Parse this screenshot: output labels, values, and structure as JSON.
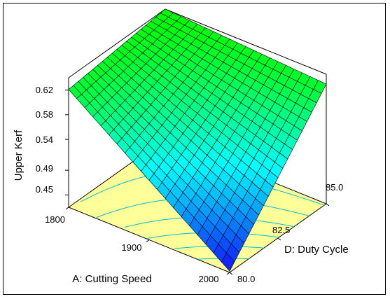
{
  "chart_data": {
    "type": "surface3d",
    "title": "",
    "zlabel": "Upper Kerf",
    "xlabel": "A: Cutting Speed",
    "ylabel": "D: Duty Cycle",
    "x_ticks": [
      "1800",
      "1900",
      "2000"
    ],
    "y_ticks": [
      "80.0",
      "82.5",
      "85.0"
    ],
    "z_ticks": [
      "0.45",
      "0.49",
      "0.54",
      "0.58",
      "0.62"
    ],
    "xlim": [
      1800,
      2000
    ],
    "ylim": [
      80,
      85
    ],
    "zlim": [
      0.43,
      0.64
    ],
    "grid_size": 20,
    "surface_corners": [
      {
        "x": 1800,
        "y": 80,
        "z": 0.621
      },
      {
        "x": 2000,
        "y": 80,
        "z": 0.432
      },
      {
        "x": 1800,
        "y": 85,
        "z": 0.64
      },
      {
        "x": 2000,
        "y": 85,
        "z": 0.624
      }
    ],
    "colormap": [
      "#1010ff",
      "#00ffff",
      "#00ff00"
    ],
    "floor_color": "#ffff99",
    "contour_color": "#00bcd4"
  }
}
